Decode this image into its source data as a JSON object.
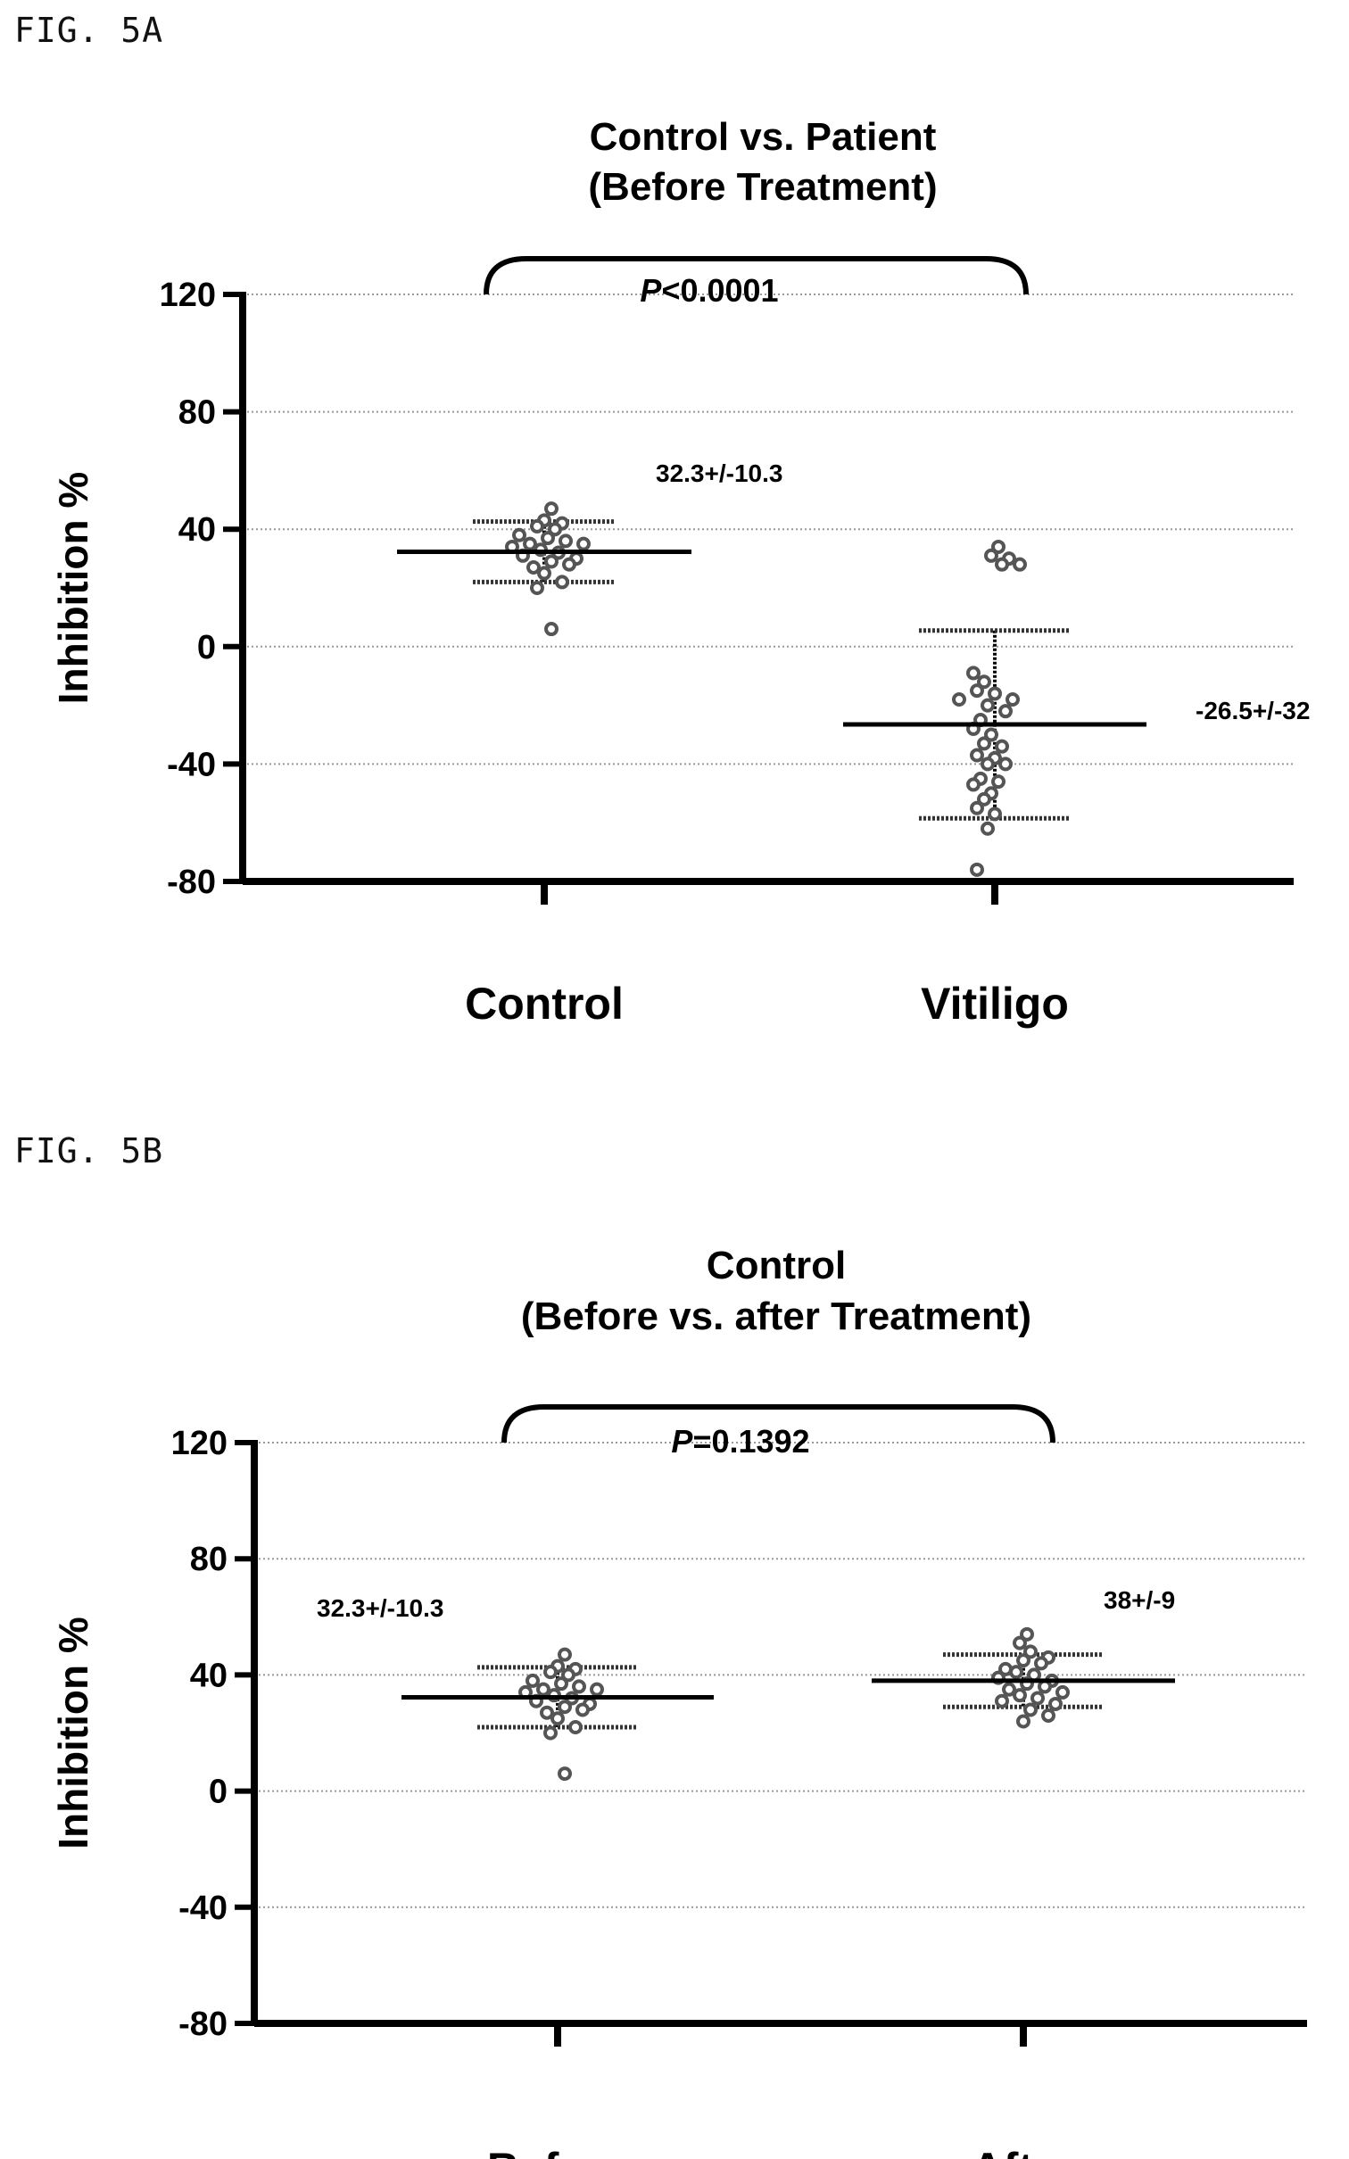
{
  "figures": [
    {
      "label": "FIG. 5A",
      "title_line1": "Control vs. Patient",
      "title_line2": "(Before Treatment)",
      "ylabel": "Inhibition %",
      "p_prefix": "P",
      "p_suffix": "<0.0001",
      "annotations": [
        "32.3+/-10.3",
        "-26.5+/-32"
      ]
    },
    {
      "label": "FIG. 5B",
      "title_line1": "Control",
      "title_line2": "(Before vs. after Treatment)",
      "ylabel": "Inhibition %",
      "p_prefix": "P",
      "p_suffix": "=0.1392",
      "annotations": [
        "32.3+/-10.3",
        "38+/-9"
      ]
    }
  ],
  "colors": {
    "axis": "#000000",
    "points": "#555555",
    "grid": "#999999"
  },
  "chart_data": [
    {
      "type": "scatter",
      "title": "Control vs. Patient (Before Treatment)",
      "xlabel": "",
      "ylabel": "Inhibition %",
      "ylim": [
        -80,
        120
      ],
      "yticks": [
        120,
        80,
        40,
        0,
        -40,
        -80
      ],
      "grid": true,
      "categories": [
        "Control",
        "Vitiligo"
      ],
      "series": [
        {
          "name": "Control",
          "mean": 32.3,
          "sd": 10.3,
          "values": [
            47,
            43,
            42,
            41,
            40,
            38,
            37,
            36,
            35,
            35,
            34,
            33,
            32,
            31,
            30,
            29,
            28,
            27,
            25,
            22,
            20,
            6
          ]
        },
        {
          "name": "Vitiligo",
          "mean": -26.5,
          "sd": 32,
          "values": [
            34,
            31,
            30,
            28,
            28,
            -9,
            -12,
            -15,
            -16,
            -18,
            -18,
            -20,
            -22,
            -25,
            -28,
            -30,
            -33,
            -34,
            -37,
            -38,
            -40,
            -40,
            -45,
            -46,
            -47,
            -50,
            -52,
            -55,
            -57,
            -62,
            -76
          ]
        }
      ],
      "annotations": [
        "32.3+/-10.3",
        "-26.5+/-32"
      ],
      "comparison": "P<0.0001"
    },
    {
      "type": "scatter",
      "title": "Control (Before vs. after Treatment)",
      "xlabel": "",
      "ylabel": "Inhibition %",
      "ylim": [
        -80,
        120
      ],
      "yticks": [
        120,
        80,
        40,
        0,
        -40,
        -80
      ],
      "grid": true,
      "categories": [
        "Before",
        "After"
      ],
      "series": [
        {
          "name": "Before",
          "mean": 32.3,
          "sd": 10.3,
          "values": [
            47,
            43,
            42,
            41,
            40,
            38,
            37,
            36,
            35,
            35,
            34,
            33,
            32,
            31,
            30,
            29,
            28,
            27,
            25,
            22,
            20,
            6
          ]
        },
        {
          "name": "After",
          "mean": 38,
          "sd": 9,
          "values": [
            54,
            51,
            48,
            46,
            45,
            44,
            42,
            41,
            40,
            39,
            38,
            37,
            36,
            35,
            34,
            33,
            32,
            31,
            30,
            28,
            26,
            24
          ]
        }
      ],
      "annotations": [
        "32.3+/-10.3",
        "38+/-9"
      ],
      "comparison": "P=0.1392"
    }
  ]
}
